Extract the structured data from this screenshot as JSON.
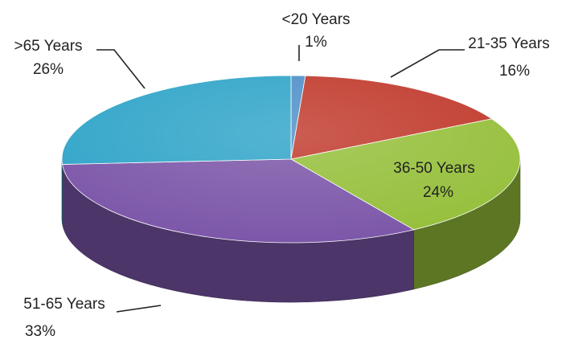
{
  "chart_data": {
    "type": "pie",
    "title": "",
    "legend": "none",
    "style": "3d",
    "slices": [
      {
        "name": "<20 Years",
        "label": "<20 Years",
        "pct_label": "1%",
        "value": 1,
        "color": "#4f8fc8"
      },
      {
        "name": "21-35 Years",
        "label": "21-35 Years",
        "pct_label": "16%",
        "value": 16,
        "color": "#c0392b"
      },
      {
        "name": "36-50 Years",
        "label": "36-50 Years",
        "pct_label": "24%",
        "value": 24,
        "color": "#95bf3a"
      },
      {
        "name": "51-65 Years",
        "label": "51-65 Years",
        "pct_label": "33%",
        "value": 33,
        "color": "#7b55a8"
      },
      {
        "name": ">65 Years",
        "label": ">65 Years",
        "pct_label": "26%",
        "value": 26,
        "color": "#2fa4c8"
      }
    ]
  }
}
